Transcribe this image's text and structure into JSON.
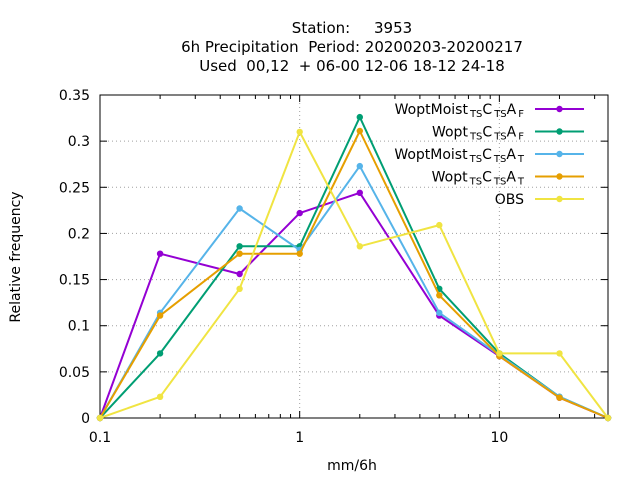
{
  "header": {
    "line1": "Station:     3953",
    "line2": "6h Precipitation  Period: 20200203-20200217",
    "line3": "Used  00,12  + 06-00 12-06 18-12 24-18"
  },
  "chart_data": {
    "type": "line",
    "xlabel": "mm/6h",
    "ylabel": "Relative frequency",
    "x_scale": "log",
    "xlim": [
      0.1,
      35
    ],
    "ylim": [
      0,
      0.35
    ],
    "grid": true,
    "legend_position": "top-right",
    "x_ticks": [
      {
        "value": 0.1,
        "label": "0.1"
      },
      {
        "value": 1,
        "label": "1"
      },
      {
        "value": 10,
        "label": "10"
      }
    ],
    "y_ticks": [
      {
        "value": 0,
        "label": "0"
      },
      {
        "value": 0.05,
        "label": "0.05"
      },
      {
        "value": 0.1,
        "label": "0.1"
      },
      {
        "value": 0.15,
        "label": "0.15"
      },
      {
        "value": 0.2,
        "label": "0.2"
      },
      {
        "value": 0.25,
        "label": "0.25"
      },
      {
        "value": 0.3,
        "label": "0.3"
      },
      {
        "value": 0.35,
        "label": "0.35"
      }
    ],
    "x": [
      0.1,
      0.2,
      0.5,
      1,
      2,
      5,
      10,
      20,
      35
    ],
    "series": [
      {
        "name": "WoptMoist",
        "name_parts": [
          [
            "WoptMoist",
            ""
          ],
          [
            "TS",
            "sub"
          ],
          [
            "C",
            ""
          ],
          [
            "TS",
            "sub"
          ],
          [
            "A",
            ""
          ],
          [
            "F",
            "sub"
          ]
        ],
        "color": "#9400d3",
        "values": [
          0.0,
          0.178,
          0.156,
          0.222,
          0.244,
          0.111,
          0.067,
          0.022,
          0.0
        ]
      },
      {
        "name": "Wopt",
        "name_parts": [
          [
            "Wopt",
            ""
          ],
          [
            "TS",
            "sub"
          ],
          [
            "C",
            ""
          ],
          [
            "TS",
            "sub"
          ],
          [
            "A",
            ""
          ],
          [
            "F",
            "sub"
          ]
        ],
        "color": "#009e73",
        "values": [
          0.0,
          0.07,
          0.186,
          0.186,
          0.326,
          0.14,
          0.07,
          0.023,
          0.0
        ]
      },
      {
        "name": "WoptMoist",
        "name_parts": [
          [
            "WoptMoist",
            ""
          ],
          [
            "TS",
            "sub"
          ],
          [
            "C",
            ""
          ],
          [
            "TS",
            "sub"
          ],
          [
            "A",
            ""
          ],
          [
            "T",
            "sub"
          ]
        ],
        "color": "#56b4e9",
        "values": [
          0.0,
          0.114,
          0.227,
          0.182,
          0.273,
          0.114,
          0.068,
          0.023,
          0.0
        ]
      },
      {
        "name": "Wopt",
        "name_parts": [
          [
            "Wopt",
            ""
          ],
          [
            "TS",
            "sub"
          ],
          [
            "C",
            ""
          ],
          [
            "TS",
            "sub"
          ],
          [
            "A",
            ""
          ],
          [
            "T",
            "sub"
          ]
        ],
        "color": "#e69f00",
        "values": [
          0.0,
          0.111,
          0.178,
          0.178,
          0.311,
          0.133,
          0.067,
          0.022,
          0.0
        ]
      },
      {
        "name": "OBS",
        "name_parts": [
          [
            "OBS",
            ""
          ]
        ],
        "color": "#f0e442",
        "values": [
          0.0,
          0.023,
          0.14,
          0.31,
          0.186,
          0.209,
          0.07,
          0.07,
          0.0
        ]
      }
    ]
  }
}
